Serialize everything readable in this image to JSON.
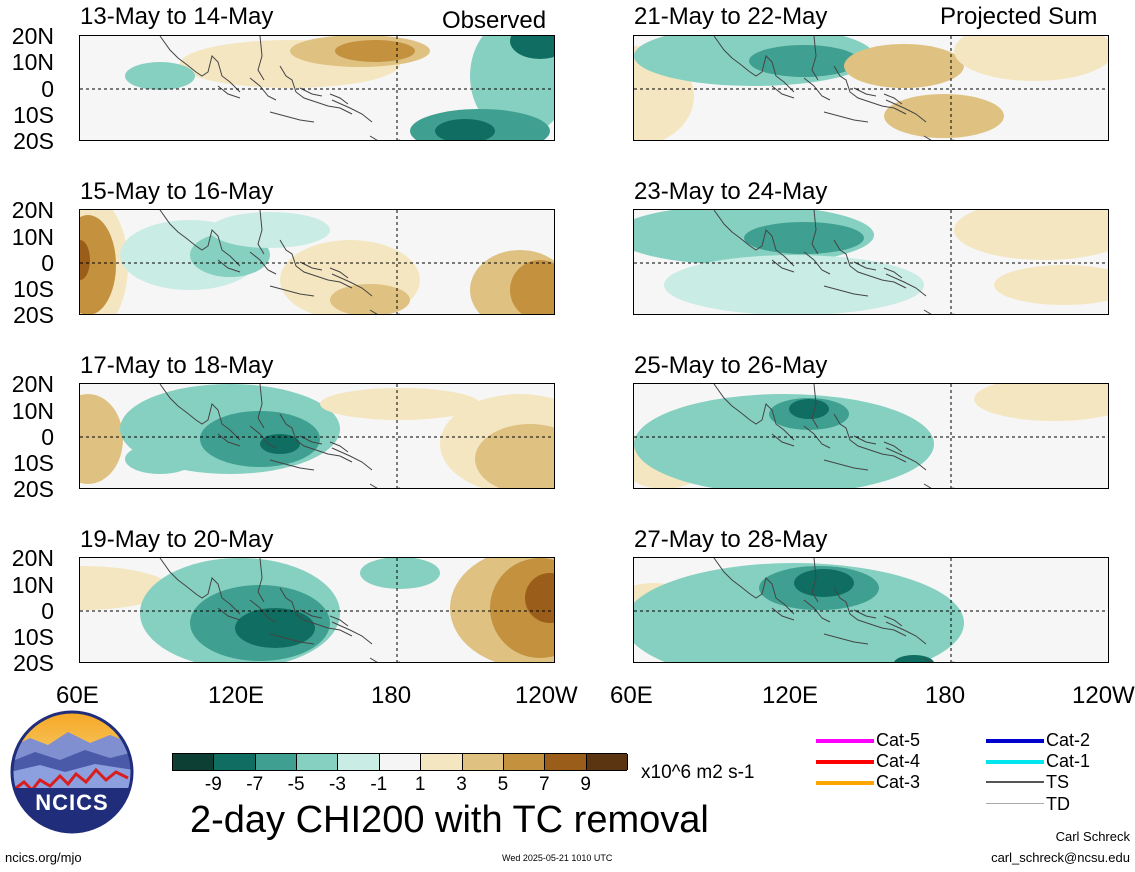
{
  "panels_left": [
    {
      "title": "13-May to 14-May"
    },
    {
      "title": "15-May to 16-May"
    },
    {
      "title": "17-May to 18-May"
    },
    {
      "title": "19-May to 20-May"
    }
  ],
  "panels_right": [
    {
      "title": "21-May to 22-May"
    },
    {
      "title": "23-May to 24-May"
    },
    {
      "title": "25-May to 26-May"
    },
    {
      "title": "27-May to 28-May"
    }
  ],
  "tags": {
    "left": "Observed",
    "right": "Projected Sum"
  },
  "lat_labels": [
    "20N",
    "10N",
    "0",
    "10S",
    "20S"
  ],
  "lon_labels": {
    "left": [
      "60E",
      "120E",
      "180",
      "120W"
    ],
    "right": [
      "60E",
      "120E",
      "180",
      "120W"
    ]
  },
  "colorbar": {
    "colors": [
      "#0d3f35",
      "#0f6e61",
      "#3f9f90",
      "#86d0c1",
      "#c9ece4",
      "#f5f5f5",
      "#f4e6c0",
      "#dfc282",
      "#c4913f",
      "#9a5d1a",
      "#5b3512"
    ],
    "labels": [
      "-9",
      "-7",
      "-5",
      "-3",
      "-1",
      "1",
      "3",
      "5",
      "7",
      "9"
    ],
    "units": "x10^6 m2 s-1"
  },
  "main_title": "2-day CHI200 with TC removal",
  "logo": {
    "text": "NCICS"
  },
  "footer": {
    "url": "ncics.org/mjo",
    "timestamp": "Wed 2025-05-21 1010 UTC",
    "author": "Carl Schreck",
    "email": "carl_schreck@ncsu.edu"
  },
  "tc_legend": [
    {
      "label": "Cat-5",
      "color": "#ff00ff"
    },
    {
      "label": "Cat-4",
      "color": "#ff0000"
    },
    {
      "label": "Cat-3",
      "color": "#ffa500"
    },
    {
      "label": "Cat-2",
      "color": "#0000cd"
    },
    {
      "label": "Cat-1",
      "color": "#00e5ee"
    },
    {
      "label": "TS",
      "color": "#555555"
    },
    {
      "label": "TD",
      "color": "#aaaaaa"
    }
  ]
}
